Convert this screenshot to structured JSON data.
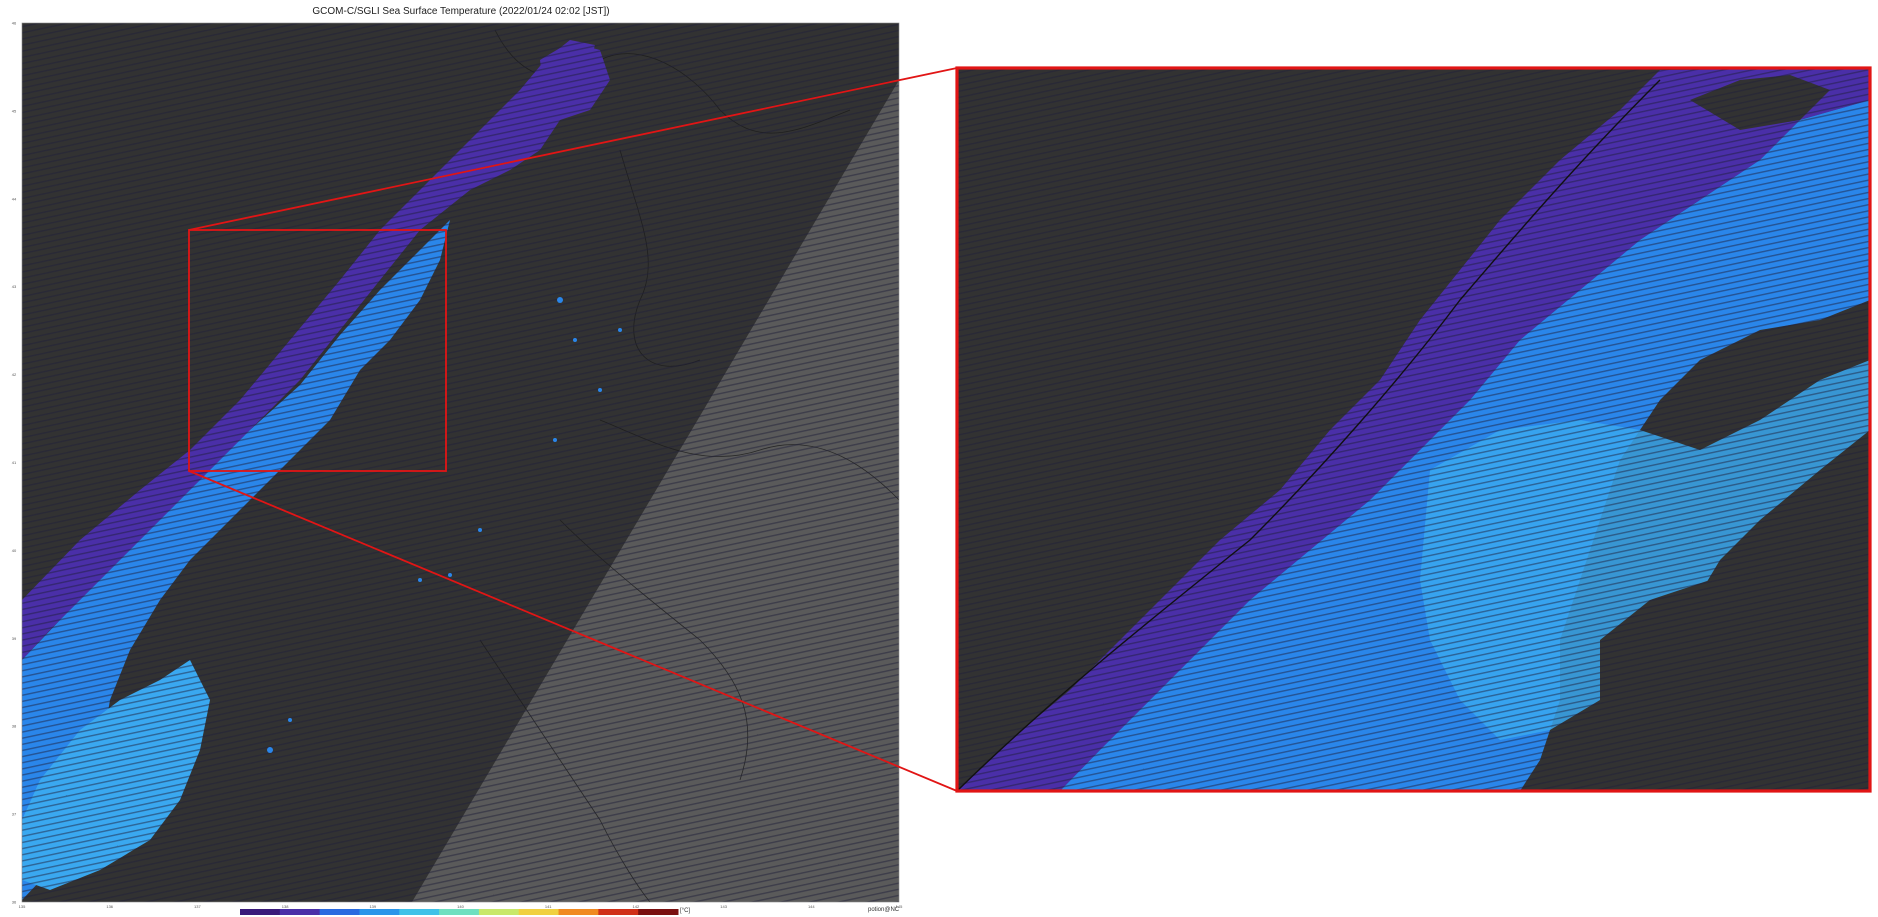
{
  "title": "GCOM-C/SGLI Sea Surface Temperature (2022/01/24 02:02 [JST])",
  "credit": "potion@NC",
  "unit": "[°C]",
  "colors": {
    "background": "#ffffff",
    "land": "#323232",
    "swath": "#5a5a5a",
    "highlight": "#e11515",
    "sst_cold": "#4a2fa8",
    "sst_mid": "#2a86ea",
    "sst_warm": "#3aa8f0"
  },
  "colorbar": [
    "#3a1a7a",
    "#4a2fa8",
    "#2a6ae0",
    "#2a96ea",
    "#3fc2e8",
    "#6fe0c0",
    "#c8e86a",
    "#f0d040",
    "#f08a20",
    "#d03018",
    "#7a1010"
  ],
  "lon_ticks": [
    "135",
    "136",
    "137",
    "138",
    "139",
    "140",
    "141",
    "142",
    "143",
    "144",
    "145"
  ],
  "lat_ticks": [
    "46",
    "45",
    "44",
    "43",
    "42",
    "41",
    "40",
    "39",
    "38",
    "37",
    "36"
  ]
}
